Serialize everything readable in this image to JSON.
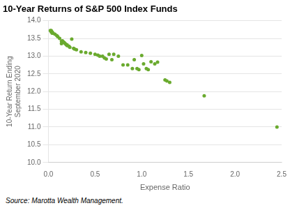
{
  "chart_data": {
    "type": "scatter",
    "title": "10-Year Returns of S&P 500 Index Funds",
    "xlabel": "Expense Ratio",
    "ylabel": "10-Year Return Ending\nSeptember 2020",
    "source": "Source: Marotta Wealth Management.",
    "color": "#6aaa2e",
    "grid": "y",
    "xlim": [
      0,
      2.5
    ],
    "ylim": [
      10.0,
      14.0
    ],
    "xticks": [
      {
        "value": 0,
        "label": "0.0"
      },
      0.5,
      {
        "value": 1,
        "label": "1.0"
      },
      1.5,
      {
        "value": 2,
        "label": "2.0"
      },
      2.5
    ],
    "yticks": [
      {
        "value": 10,
        "label": "10.0"
      },
      10.5,
      {
        "value": 11,
        "label": "11.0"
      },
      11.5,
      {
        "value": 12,
        "label": "12.0"
      },
      12.5,
      {
        "value": 13,
        "label": "13.0"
      },
      13.5,
      {
        "value": 14,
        "label": "14.0"
      }
    ],
    "x": [
      0.02,
      0.03,
      0.03,
      0.04,
      0.04,
      0.05,
      0.07,
      0.09,
      0.1,
      0.12,
      0.14,
      0.14,
      0.15,
      0.16,
      0.17,
      0.18,
      0.19,
      0.2,
      0.2,
      0.22,
      0.23,
      0.25,
      0.27,
      0.28,
      0.3,
      0.35,
      0.4,
      0.45,
      0.5,
      0.53,
      0.55,
      0.58,
      0.6,
      0.62,
      0.65,
      0.68,
      0.7,
      0.75,
      0.8,
      0.85,
      0.9,
      0.92,
      0.95,
      0.97,
      1.0,
      1.02,
      1.05,
      1.07,
      1.1,
      1.14,
      1.17,
      1.25,
      1.27,
      1.3,
      1.67,
      2.45
    ],
    "values": [
      13.72,
      13.72,
      13.68,
      13.68,
      13.65,
      13.65,
      13.62,
      13.58,
      13.55,
      13.5,
      13.35,
      13.42,
      13.43,
      13.4,
      13.38,
      13.35,
      13.33,
      13.32,
      13.3,
      13.28,
      13.25,
      13.48,
      13.22,
      13.2,
      13.18,
      13.12,
      13.1,
      13.08,
      13.05,
      13.03,
      13.0,
      13.0,
      12.95,
      12.92,
      13.05,
      12.9,
      13.05,
      13.0,
      12.75,
      12.75,
      12.65,
      12.9,
      12.65,
      12.62,
      13.02,
      12.78,
      12.65,
      12.62,
      12.84,
      12.78,
      12.83,
      12.33,
      12.3,
      12.26,
      11.88,
      11.0
    ]
  }
}
